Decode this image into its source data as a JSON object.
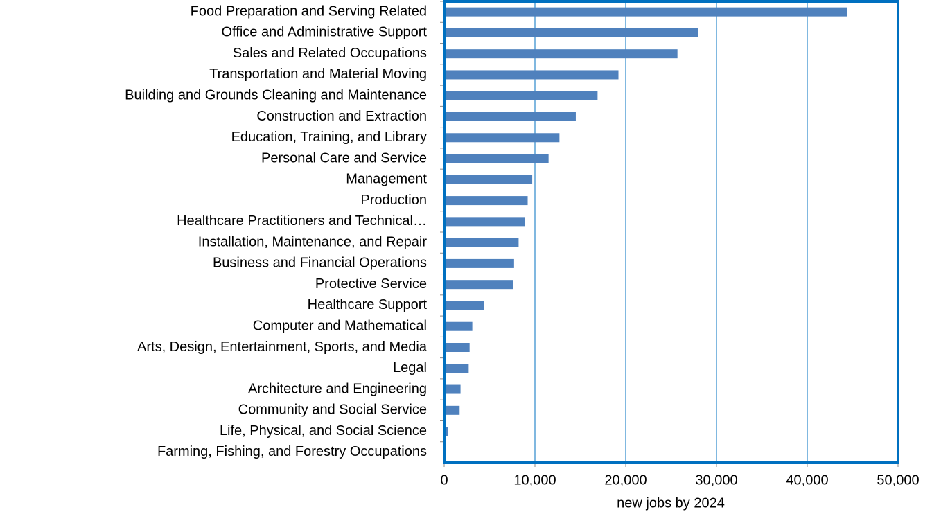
{
  "chart_data": {
    "type": "bar",
    "orientation": "horizontal",
    "categories": [
      "Food Preparation and Serving Related",
      "Office and Administrative Support",
      "Sales and Related Occupations",
      "Transportation and Material Moving",
      "Building and Grounds Cleaning and Maintenance",
      "Construction and Extraction",
      "Education, Training, and Library",
      "Personal Care and Service",
      "Management",
      "Production",
      "Healthcare Practitioners and Technical…",
      "Installation, Maintenance, and Repair",
      "Business and Financial Operations",
      "Protective Service",
      "Healthcare Support",
      "Computer and Mathematical",
      "Arts, Design, Entertainment, Sports, and Media",
      "Legal",
      "Architecture and Engineering",
      "Community and Social Service",
      "Life, Physical, and Social Science",
      "Farming, Fishing, and Forestry Occupations"
    ],
    "values": [
      44400,
      28000,
      25700,
      19200,
      16900,
      14500,
      12700,
      11500,
      9700,
      9200,
      8900,
      8200,
      7700,
      7600,
      4400,
      3100,
      2800,
      2700,
      1800,
      1700,
      400,
      0
    ],
    "color": "#4f81bd",
    "xlabel": "new jobs by 2024",
    "xlim": [
      0,
      50000
    ],
    "xticks": [
      0,
      {
        "value": 10000,
        "label": "10,000"
      },
      {
        "value": 20000,
        "label": "20,000"
      },
      {
        "value": 30000,
        "label": "30,000"
      },
      {
        "value": 40000,
        "label": "40,000"
      },
      {
        "value": 50000,
        "label": "50,000"
      }
    ],
    "grid": true,
    "grid_color": "#0070c0",
    "frame_color": "#0070c0"
  }
}
